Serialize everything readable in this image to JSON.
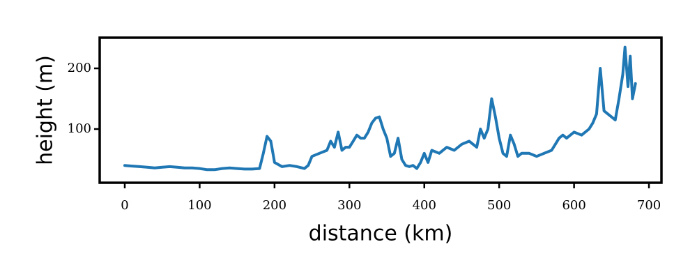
{
  "chart_data": {
    "type": "line",
    "x_label": "distance (km)",
    "y_label": "height (m)",
    "x": [
      0,
      10,
      20,
      30,
      40,
      50,
      60,
      70,
      80,
      90,
      100,
      110,
      120,
      130,
      140,
      150,
      160,
      170,
      180,
      185,
      190,
      195,
      200,
      210,
      220,
      230,
      240,
      245,
      250,
      260,
      270,
      275,
      280,
      285,
      290,
      295,
      300,
      305,
      310,
      315,
      320,
      325,
      330,
      335,
      340,
      345,
      350,
      355,
      360,
      365,
      370,
      375,
      380,
      385,
      390,
      395,
      400,
      405,
      410,
      420,
      430,
      440,
      450,
      460,
      470,
      475,
      480,
      485,
      490,
      495,
      500,
      505,
      510,
      515,
      520,
      525,
      530,
      540,
      550,
      560,
      570,
      575,
      580,
      585,
      590,
      600,
      610,
      620,
      625,
      630,
      635,
      640,
      645,
      650,
      655,
      660,
      665,
      668,
      672,
      675,
      678,
      682
    ],
    "series": [
      {
        "name": "height",
        "color": "#1f77b4",
        "values": [
          40,
          39,
          38,
          37,
          36,
          37,
          38,
          37,
          36,
          36,
          35,
          33,
          33,
          35,
          36,
          35,
          34,
          34,
          35,
          60,
          88,
          80,
          45,
          38,
          40,
          38,
          35,
          40,
          55,
          60,
          65,
          80,
          70,
          95,
          65,
          70,
          70,
          80,
          90,
          85,
          85,
          95,
          110,
          118,
          120,
          100,
          85,
          55,
          60,
          85,
          50,
          40,
          38,
          40,
          35,
          45,
          60,
          45,
          65,
          60,
          70,
          65,
          75,
          80,
          70,
          100,
          85,
          100,
          150,
          120,
          85,
          60,
          55,
          90,
          75,
          55,
          60,
          60,
          55,
          60,
          65,
          75,
          85,
          90,
          85,
          95,
          90,
          100,
          110,
          125,
          200,
          130,
          125,
          120,
          115,
          150,
          190,
          235,
          170,
          220,
          150,
          175
        ]
      }
    ],
    "xlim": [
      -33.5,
      716.7
    ],
    "ylim": [
      11.5,
      250.6
    ],
    "xticks": [
      0,
      100,
      200,
      300,
      400,
      500,
      600,
      700
    ],
    "yticks": [
      100,
      200
    ]
  }
}
